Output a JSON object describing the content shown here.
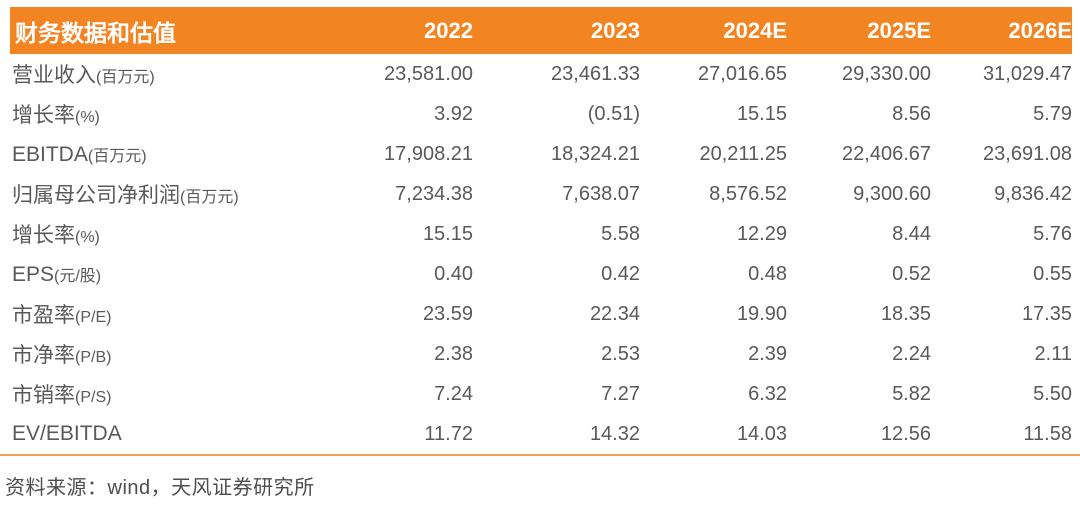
{
  "table": {
    "title": "财务数据和估值",
    "years": [
      "2022",
      "2023",
      "2024E",
      "2025E",
      "2026E"
    ],
    "rows": [
      {
        "name": "营业收入",
        "unit": "(百万元)",
        "values": [
          "23,581.00",
          "23,461.33",
          "27,016.65",
          "29,330.00",
          "31,029.47"
        ]
      },
      {
        "name": "增长率",
        "unit": "(%)",
        "values": [
          "3.92",
          "(0.51)",
          "15.15",
          "8.56",
          "5.79"
        ]
      },
      {
        "name": "EBITDA",
        "unit": "(百万元)",
        "values": [
          "17,908.21",
          "18,324.21",
          "20,211.25",
          "22,406.67",
          "23,691.08"
        ]
      },
      {
        "name": "归属母公司净利润",
        "unit": "(百万元)",
        "values": [
          "7,234.38",
          "7,638.07",
          "8,576.52",
          "9,300.60",
          "9,836.42"
        ]
      },
      {
        "name": "增长率",
        "unit": "(%)",
        "values": [
          "15.15",
          "5.58",
          "12.29",
          "8.44",
          "5.76"
        ]
      },
      {
        "name": "EPS",
        "unit": "(元/股)",
        "values": [
          "0.40",
          "0.42",
          "0.48",
          "0.52",
          "0.55"
        ]
      },
      {
        "name": "市盈率",
        "unit": "(P/E)",
        "values": [
          "23.59",
          "22.34",
          "19.90",
          "18.35",
          "17.35"
        ]
      },
      {
        "name": "市净率",
        "unit": "(P/B)",
        "values": [
          "2.38",
          "2.53",
          "2.39",
          "2.24",
          "2.11"
        ]
      },
      {
        "name": "市销率",
        "unit": "(P/S)",
        "values": [
          "7.24",
          "7.27",
          "6.32",
          "5.82",
          "5.50"
        ]
      },
      {
        "name": "EV/EBITDA",
        "unit": "",
        "values": [
          "11.72",
          "14.32",
          "14.03",
          "12.56",
          "11.58"
        ]
      }
    ]
  },
  "footer": {
    "source": "资料来源：wind，天风证券研究所"
  },
  "colors": {
    "header_bg": "#F28422",
    "header_text": "#FFFFFF",
    "body_text": "#595959",
    "divider": "#F2A053"
  }
}
